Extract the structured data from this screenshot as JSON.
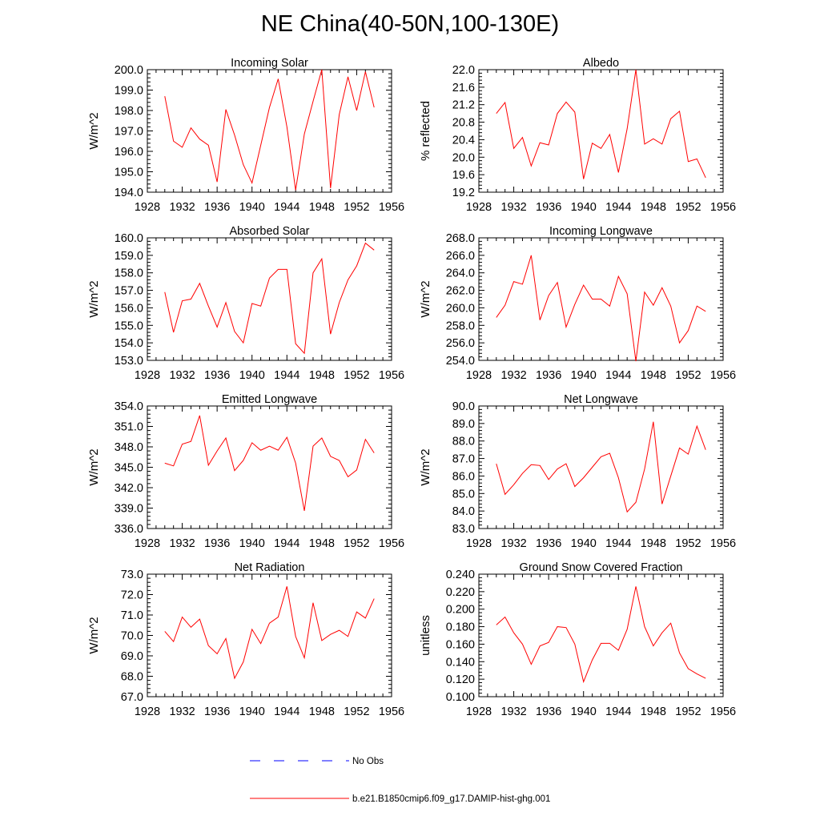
{
  "title": "NE China(40-50N,100-130E)",
  "colors": {
    "model": "#ff0000",
    "obs": "#0000ff",
    "axis": "#000000"
  },
  "legend": [
    {
      "label": "No Obs",
      "style": "dashed",
      "color": "#0000ff"
    },
    {
      "label": "b.e21.B1850cmip6.f09_g17.DAMIP-hist-ghg.001",
      "style": "solid",
      "color": "#ff0000"
    }
  ],
  "chart_data": [
    {
      "type": "line",
      "title": "Incoming Solar",
      "ylabel": "W/m^2",
      "xlim": [
        1928,
        1956
      ],
      "xticks": [
        "1928",
        "1932",
        "1936",
        "1940",
        "1944",
        "1948",
        "1952",
        "1956"
      ],
      "ylim": [
        194.0,
        200.0
      ],
      "yticks": [
        "194.0",
        "195.0",
        "196.0",
        "197.0",
        "198.0",
        "199.0",
        "200.0"
      ],
      "x": [
        1930,
        1931,
        1932,
        1933,
        1934,
        1935,
        1936,
        1937,
        1938,
        1939,
        1940,
        1941,
        1942,
        1943,
        1944,
        1945,
        1946,
        1947,
        1948,
        1949,
        1950,
        1951,
        1952,
        1953,
        1954
      ],
      "series": [
        {
          "name": "b.e21.B1850cmip6.f09_g17.DAMIP-hist-ghg.001",
          "values": [
            198.7,
            196.5,
            196.2,
            197.15,
            196.6,
            196.3,
            194.5,
            198.05,
            196.8,
            195.35,
            194.45,
            196.3,
            198.15,
            199.55,
            197.2,
            194.1,
            196.85,
            198.45,
            200.0,
            194.2,
            197.8,
            199.65,
            198.0,
            199.9,
            198.15
          ]
        }
      ]
    },
    {
      "type": "line",
      "title": "Albedo",
      "ylabel": "% reflected",
      "xlim": [
        1928,
        1956
      ],
      "xticks": [
        "1928",
        "1932",
        "1936",
        "1940",
        "1944",
        "1948",
        "1952",
        "1956"
      ],
      "ylim": [
        19.2,
        22.0
      ],
      "yticks": [
        "19.2",
        "19.6",
        "20.0",
        "20.4",
        "20.8",
        "21.2",
        "21.6",
        "22.0"
      ],
      "x": [
        1930,
        1931,
        1932,
        1933,
        1934,
        1935,
        1936,
        1937,
        1938,
        1939,
        1940,
        1941,
        1942,
        1943,
        1944,
        1945,
        1946,
        1947,
        1948,
        1949,
        1950,
        1951,
        1952,
        1953,
        1954
      ],
      "series": [
        {
          "name": "b.e21.B1850cmip6.f09_g17.DAMIP-hist-ghg.001",
          "values": [
            21.0,
            21.25,
            20.2,
            20.45,
            19.8,
            20.33,
            20.28,
            21.0,
            21.26,
            21.03,
            19.5,
            20.32,
            20.2,
            20.52,
            19.65,
            20.65,
            22.0,
            20.3,
            20.42,
            20.3,
            20.88,
            21.05,
            19.9,
            19.96,
            19.53
          ]
        }
      ]
    },
    {
      "type": "line",
      "title": "Absorbed Solar",
      "ylabel": "W/m^2",
      "xlim": [
        1928,
        1956
      ],
      "xticks": [
        "1928",
        "1932",
        "1936",
        "1940",
        "1944",
        "1948",
        "1952",
        "1956"
      ],
      "ylim": [
        153.0,
        160.0
      ],
      "yticks": [
        "153.0",
        "154.0",
        "155.0",
        "156.0",
        "157.0",
        "158.0",
        "159.0",
        "160.0"
      ],
      "x": [
        1930,
        1931,
        1932,
        1933,
        1934,
        1935,
        1936,
        1937,
        1938,
        1939,
        1940,
        1941,
        1942,
        1943,
        1944,
        1945,
        1946,
        1947,
        1948,
        1949,
        1950,
        1951,
        1952,
        1953,
        1954
      ],
      "series": [
        {
          "name": "b.e21.B1850cmip6.f09_g17.DAMIP-hist-ghg.001",
          "values": [
            156.9,
            154.6,
            156.4,
            156.5,
            157.4,
            156.1,
            154.9,
            156.3,
            154.65,
            154.0,
            156.25,
            156.1,
            157.7,
            158.2,
            158.2,
            153.95,
            153.4,
            158.0,
            158.8,
            154.5,
            156.3,
            157.6,
            158.4,
            159.7,
            159.3
          ]
        }
      ]
    },
    {
      "type": "line",
      "title": "Incoming Longwave",
      "ylabel": "W/m^2",
      "xlim": [
        1928,
        1956
      ],
      "xticks": [
        "1928",
        "1932",
        "1936",
        "1940",
        "1944",
        "1948",
        "1952",
        "1956"
      ],
      "ylim": [
        254.0,
        268.0
      ],
      "yticks": [
        "254.0",
        "256.0",
        "258.0",
        "260.0",
        "262.0",
        "264.0",
        "266.0",
        "268.0"
      ],
      "x": [
        1930,
        1931,
        1932,
        1933,
        1934,
        1935,
        1936,
        1937,
        1938,
        1939,
        1940,
        1941,
        1942,
        1943,
        1944,
        1945,
        1946,
        1947,
        1948,
        1949,
        1950,
        1951,
        1952,
        1953,
        1954
      ],
      "series": [
        {
          "name": "b.e21.B1850cmip6.f09_g17.DAMIP-hist-ghg.001",
          "values": [
            258.9,
            260.3,
            263.0,
            262.7,
            266.0,
            258.6,
            261.4,
            262.9,
            257.8,
            260.4,
            262.6,
            261.0,
            261.0,
            260.2,
            263.6,
            261.6,
            253.9,
            261.8,
            260.3,
            262.3,
            260.2,
            256.0,
            257.4,
            260.2,
            259.6
          ]
        }
      ]
    },
    {
      "type": "line",
      "title": "Emitted Longwave",
      "ylabel": "W/m^2",
      "xlim": [
        1928,
        1956
      ],
      "xticks": [
        "1928",
        "1932",
        "1936",
        "1940",
        "1944",
        "1948",
        "1952",
        "1956"
      ],
      "ylim": [
        336.0,
        354.0
      ],
      "yticks": [
        "336.0",
        "339.0",
        "342.0",
        "345.0",
        "348.0",
        "351.0",
        "354.0"
      ],
      "x": [
        1930,
        1931,
        1932,
        1933,
        1934,
        1935,
        1936,
        1937,
        1938,
        1939,
        1940,
        1941,
        1942,
        1943,
        1944,
        1945,
        1946,
        1947,
        1948,
        1949,
        1950,
        1951,
        1952,
        1953,
        1954
      ],
      "series": [
        {
          "name": "b.e21.B1850cmip6.f09_g17.DAMIP-hist-ghg.001",
          "values": [
            345.6,
            345.2,
            348.4,
            348.8,
            352.6,
            345.3,
            347.4,
            349.3,
            344.5,
            346.0,
            348.6,
            347.5,
            348.1,
            347.5,
            349.4,
            345.6,
            338.6,
            348.1,
            349.3,
            346.6,
            346.0,
            343.6,
            344.6,
            349.1,
            347.1
          ]
        }
      ]
    },
    {
      "type": "line",
      "title": "Net Longwave",
      "ylabel": "W/m^2",
      "xlim": [
        1928,
        1956
      ],
      "xticks": [
        "1928",
        "1932",
        "1936",
        "1940",
        "1944",
        "1948",
        "1952",
        "1956"
      ],
      "ylim": [
        83.0,
        90.0
      ],
      "yticks": [
        "83.0",
        "84.0",
        "85.0",
        "86.0",
        "87.0",
        "88.0",
        "89.0",
        "90.0"
      ],
      "x": [
        1930,
        1931,
        1932,
        1933,
        1934,
        1935,
        1936,
        1937,
        1938,
        1939,
        1940,
        1941,
        1942,
        1943,
        1944,
        1945,
        1946,
        1947,
        1948,
        1949,
        1950,
        1951,
        1952,
        1953,
        1954
      ],
      "series": [
        {
          "name": "b.e21.B1850cmip6.f09_g17.DAMIP-hist-ghg.001",
          "values": [
            86.7,
            84.95,
            85.5,
            86.15,
            86.65,
            86.6,
            85.8,
            86.4,
            86.7,
            85.4,
            85.9,
            86.5,
            87.1,
            87.3,
            85.9,
            83.95,
            84.5,
            86.4,
            89.1,
            84.4,
            86.0,
            87.6,
            87.25,
            88.85,
            87.5
          ]
        }
      ]
    },
    {
      "type": "line",
      "title": "Net Radiation",
      "ylabel": "W/m^2",
      "xlim": [
        1928,
        1956
      ],
      "xticks": [
        "1928",
        "1932",
        "1936",
        "1940",
        "1944",
        "1948",
        "1952",
        "1956"
      ],
      "ylim": [
        67.0,
        73.0
      ],
      "yticks": [
        "67.0",
        "68.0",
        "69.0",
        "70.0",
        "71.0",
        "72.0",
        "73.0"
      ],
      "x": [
        1930,
        1931,
        1932,
        1933,
        1934,
        1935,
        1936,
        1937,
        1938,
        1939,
        1940,
        1941,
        1942,
        1943,
        1944,
        1945,
        1946,
        1947,
        1948,
        1949,
        1950,
        1951,
        1952,
        1953,
        1954
      ],
      "series": [
        {
          "name": "b.e21.B1850cmip6.f09_g17.DAMIP-hist-ghg.001",
          "values": [
            70.2,
            69.7,
            70.9,
            70.4,
            70.8,
            69.5,
            69.1,
            69.85,
            67.9,
            68.7,
            70.3,
            69.6,
            70.6,
            70.9,
            72.4,
            69.95,
            68.9,
            71.6,
            69.75,
            70.05,
            70.25,
            69.95,
            71.15,
            70.85,
            71.8
          ]
        }
      ]
    },
    {
      "type": "line",
      "title": "Ground Snow Covered Fraction",
      "ylabel": "unitless",
      "xlim": [
        1928,
        1956
      ],
      "xticks": [
        "1928",
        "1932",
        "1936",
        "1940",
        "1944",
        "1948",
        "1952",
        "1956"
      ],
      "ylim": [
        0.1,
        0.24
      ],
      "yticks": [
        "0.100",
        "0.120",
        "0.140",
        "0.160",
        "0.180",
        "0.200",
        "0.220",
        "0.240"
      ],
      "x": [
        1930,
        1931,
        1932,
        1933,
        1934,
        1935,
        1936,
        1937,
        1938,
        1939,
        1940,
        1941,
        1942,
        1943,
        1944,
        1945,
        1946,
        1947,
        1948,
        1949,
        1950,
        1951,
        1952,
        1953,
        1954
      ],
      "series": [
        {
          "name": "b.e21.B1850cmip6.f09_g17.DAMIP-hist-ghg.001",
          "values": [
            0.182,
            0.191,
            0.173,
            0.16,
            0.137,
            0.158,
            0.162,
            0.18,
            0.179,
            0.16,
            0.117,
            0.142,
            0.161,
            0.161,
            0.153,
            0.177,
            0.226,
            0.18,
            0.158,
            0.173,
            0.184,
            0.15,
            0.132,
            0.126,
            0.121
          ]
        }
      ]
    }
  ]
}
